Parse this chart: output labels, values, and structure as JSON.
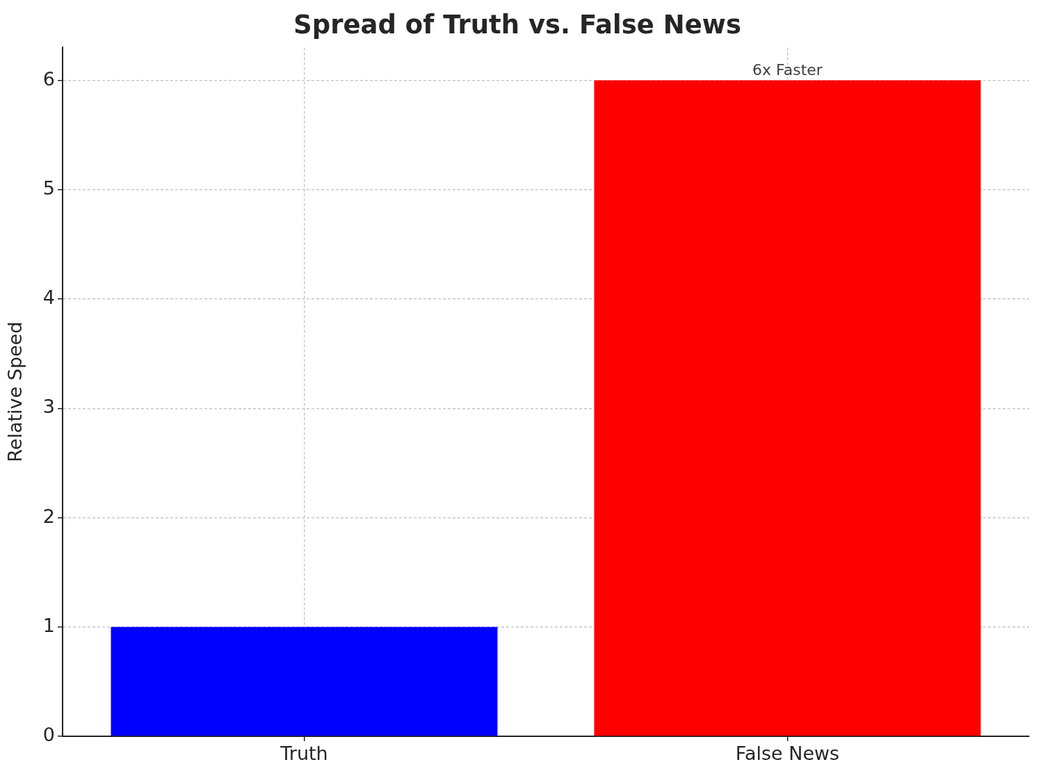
{
  "chart_data": {
    "type": "bar",
    "title": "Spread of Truth vs. False News",
    "ylabel": "Relative Speed",
    "categories": [
      "Truth",
      "False News"
    ],
    "values": [
      1,
      6
    ],
    "colors": [
      "#0000ff",
      "#ff0000"
    ],
    "ylim": [
      0,
      6.3
    ],
    "yticks": [
      0,
      1,
      2,
      3,
      4,
      5,
      6
    ],
    "grid": true,
    "annotations": [
      {
        "text": "6x Faster",
        "x": "False News",
        "y": 6
      }
    ]
  }
}
